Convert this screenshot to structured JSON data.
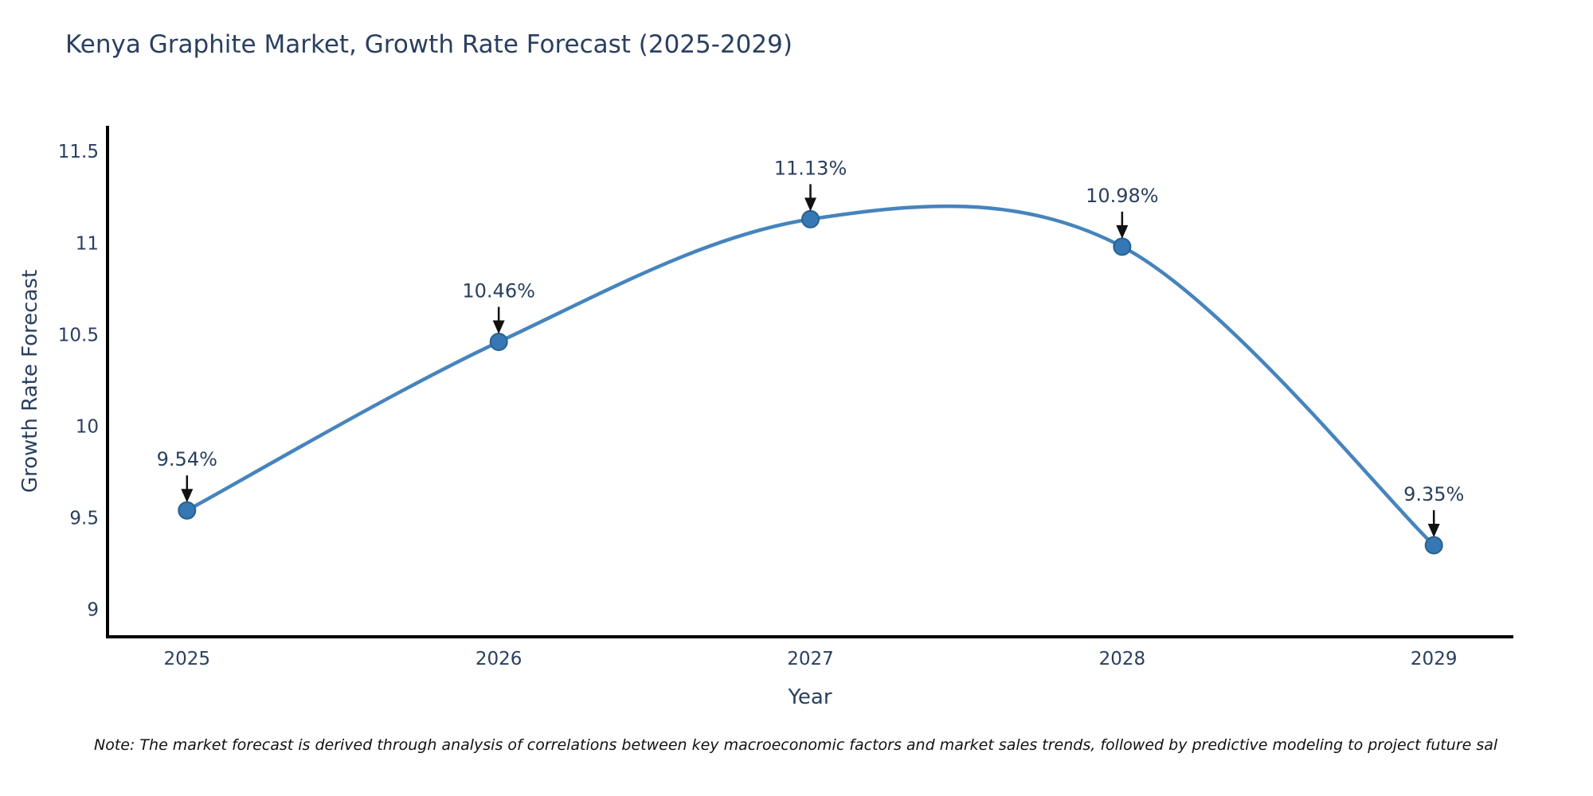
{
  "note": "Note: The market forecast is derived through analysis of correlations between key macroeconomic factors and market sales trends, followed by predictive modeling to project future sal",
  "chart_data": {
    "type": "line",
    "title": "Kenya Graphite Market, Growth Rate Forecast (2025-2029)",
    "xlabel": "Year",
    "ylabel": "Growth Rate Forecast",
    "x": [
      2025,
      2026,
      2027,
      2028,
      2029
    ],
    "values": [
      9.54,
      10.46,
      11.13,
      10.98,
      9.35
    ],
    "point_labels": [
      "9.54%",
      "10.46%",
      "11.13%",
      "10.98%",
      "9.35%"
    ],
    "xticks": [
      "2025",
      "2026",
      "2027",
      "2028",
      "2029"
    ],
    "yticks": [
      "11.5",
      "11",
      "10.5",
      "10",
      "9.5",
      "9"
    ],
    "xlim": [
      2024.745,
      2029.255
    ],
    "ylim": [
      8.85,
      11.64
    ],
    "line_shape": "spline",
    "grid": false,
    "legend": "none",
    "colors": {
      "line": "#4684bd",
      "marker_fill": "#3578b3",
      "marker_edge": "#27618f",
      "axis": "#000000",
      "arrow": "#111111",
      "text": "#2a3f5f"
    }
  }
}
